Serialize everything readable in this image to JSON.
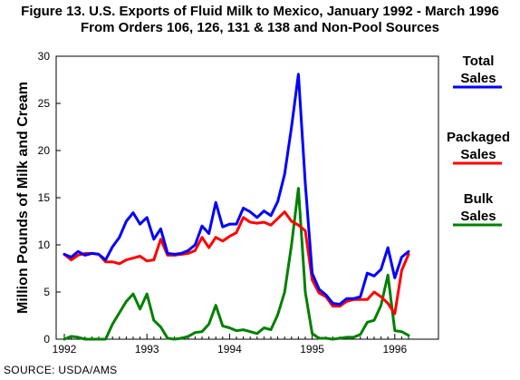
{
  "chart_data": {
    "type": "line",
    "title": "Figure 13.  U.S. Exports of Fluid Milk to Mexico, January 1992 - March 1996",
    "subtitle": "From Orders 106, 126, 131 & 138 and Non-Pool Sources",
    "ylabel": "Million Pounds of Milk and Cream",
    "xlabel": "",
    "source": "SOURCE:  USDA/AMS",
    "ylim": [
      0,
      30
    ],
    "yticks": [
      "0",
      "5",
      "10",
      "15",
      "20",
      "25",
      "30"
    ],
    "xticks": [
      "1992",
      "1993",
      "1994",
      "1995",
      "1996"
    ],
    "grid": false,
    "legend_position": "right",
    "x": [
      "1992-01",
      "1992-02",
      "1992-03",
      "1992-04",
      "1992-05",
      "1992-06",
      "1992-07",
      "1992-08",
      "1992-09",
      "1992-10",
      "1992-11",
      "1992-12",
      "1993-01",
      "1993-02",
      "1993-03",
      "1993-04",
      "1993-05",
      "1993-06",
      "1993-07",
      "1993-08",
      "1993-09",
      "1993-10",
      "1993-11",
      "1993-12",
      "1994-01",
      "1994-02",
      "1994-03",
      "1994-04",
      "1994-05",
      "1994-06",
      "1994-07",
      "1994-08",
      "1994-09",
      "1994-10",
      "1994-11",
      "1994-12",
      "1995-01",
      "1995-02",
      "1995-03",
      "1995-04",
      "1995-05",
      "1995-06",
      "1995-07",
      "1995-08",
      "1995-09",
      "1995-10",
      "1995-11",
      "1995-12",
      "1996-01",
      "1996-02",
      "1996-03"
    ],
    "series": [
      {
        "name": "Total Sales",
        "color": "#0000ff",
        "values": [
          9.0,
          8.7,
          9.3,
          8.9,
          9.1,
          9.0,
          8.4,
          9.8,
          10.8,
          12.5,
          13.4,
          12.2,
          12.9,
          10.6,
          11.7,
          9.1,
          9.0,
          9.1,
          9.4,
          10.0,
          12.0,
          11.2,
          14.5,
          11.9,
          12.2,
          12.2,
          13.9,
          13.5,
          12.9,
          13.6,
          13.1,
          14.6,
          17.5,
          22.5,
          28.1,
          16.5,
          7.0,
          5.3,
          4.7,
          3.8,
          3.7,
          4.3,
          4.3,
          4.5,
          7.0,
          6.7,
          7.4,
          9.7,
          6.5,
          8.7,
          9.3
        ]
      },
      {
        "name": "Packaged Sales",
        "color": "#ff0000",
        "values": [
          9.0,
          8.4,
          8.9,
          9.1,
          9.1,
          9.0,
          8.2,
          8.2,
          8.0,
          8.4,
          8.6,
          8.8,
          8.3,
          8.4,
          10.6,
          8.9,
          8.9,
          9.0,
          9.1,
          9.4,
          10.8,
          9.7,
          10.8,
          10.4,
          10.9,
          11.3,
          12.9,
          12.4,
          12.3,
          12.4,
          12.1,
          12.8,
          13.5,
          12.5,
          12.1,
          11.5,
          6.3,
          4.9,
          4.5,
          3.5,
          3.5,
          4.0,
          4.2,
          4.2,
          4.2,
          5.0,
          4.5,
          3.8,
          2.7,
          7.3,
          9.0
        ]
      },
      {
        "name": "Bulk Sales",
        "color": "#008000",
        "values": [
          0.0,
          0.3,
          0.2,
          0.0,
          0.0,
          0.0,
          0.0,
          1.6,
          2.8,
          4.0,
          4.8,
          3.2,
          4.8,
          2.0,
          1.3,
          0.1,
          0.0,
          0.1,
          0.3,
          0.7,
          0.8,
          1.6,
          3.6,
          1.4,
          1.2,
          0.9,
          1.0,
          0.8,
          0.6,
          1.2,
          1.0,
          2.6,
          5.0,
          10.0,
          16.0,
          5.0,
          0.6,
          0.1,
          0.1,
          0.0,
          0.1,
          0.2,
          0.2,
          0.5,
          1.8,
          2.0,
          3.6,
          6.8,
          0.9,
          0.8,
          0.4
        ]
      }
    ]
  }
}
